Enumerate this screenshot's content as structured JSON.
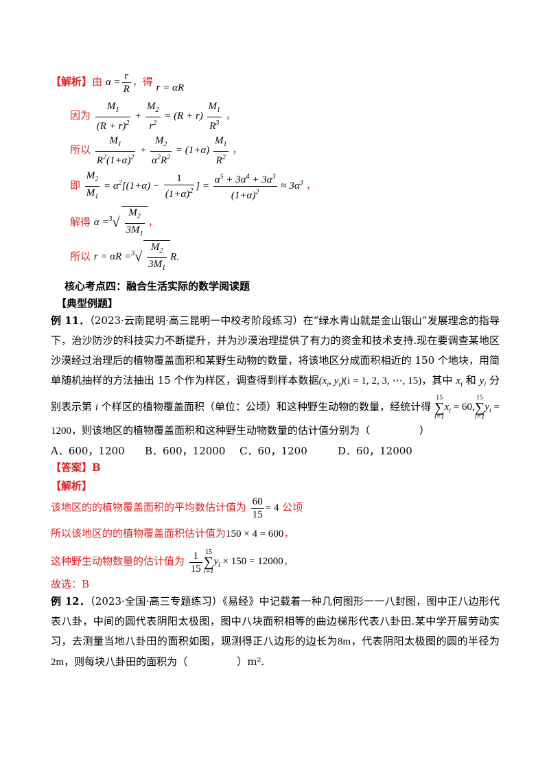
{
  "solution1": {
    "tag": "【解析】",
    "lines": [
      "由",
      "，得",
      "因为",
      "，",
      "所以",
      "，",
      "即",
      "，",
      "解得",
      "，",
      "所以",
      "R."
    ]
  },
  "core_point": "核心考点四：融合生活实际的数学阅读题",
  "typical_header": "【典型例题】",
  "example11": {
    "label": "例 11．",
    "text_p1": "（2023·云南昆明·高三昆明一中校考阶段练习）在“绿水青山就是金山银山”发展理念的指导下，治沙防沙的科技实力不断提升，并为沙漠治理提供了有力的资金和技术支持.现在要调查某地区沙漠经过治理后的植物覆盖面积和某野生动物的数量，将该地区分成面积相近的 150 个地块，用简单随机抽样的方法抽出 15 个作为样区，调查得到样本数据",
    "text_p2": "，其中",
    "text_p3": "和",
    "text_p4": "分别表示第",
    "text_p5": "个样区的植物覆盖面积（单位：公顷）和这种野生动物的数量，经统计得",
    "text_p6": "，则该地区的植物覆盖面积和这种野生动物数量的估计值分别为（",
    "text_p7": "）",
    "options": [
      "A．600，1200",
      "B．600，12000",
      "C．60，1200",
      "D．60，12000"
    ],
    "answer": "【答案】B",
    "analysis_tag": "【解析】",
    "sol_l1a": "该地区的的植物覆盖面积的平均数估计值为",
    "sol_l1b": "公顷",
    "sol_l2": "所以该地区的的植物覆盖面积估计值为",
    "sol_l2b": "，",
    "sol_l3": "这种野生动物数量的估计值为",
    "sol_l3b": "，",
    "conclusion": "故选：B"
  },
  "example12": {
    "label": "例 12．",
    "text_a": "（2023·全国·高三专题练习）《易经》中记载着一种几何图形一一八封图，图中正八边形代表八卦，中间的圆代表阴阳太极图，图中八块面积相等的曲边梯形代表八卦田.某中学开展劳动实习，去测量当地八卦田的面积如图，现测得正八边形的边长为",
    "text_b": "，代表阴阳太极图的圆的半径为",
    "text_c": "，则每块八卦田的面积为（",
    "text_d": "）m².",
    "side": "8m",
    "radius": "2m"
  }
}
